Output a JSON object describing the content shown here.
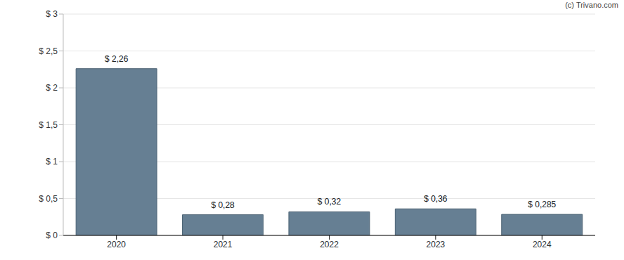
{
  "chart_data": {
    "type": "bar",
    "annotations": [
      "(c) Trivano.com"
    ],
    "categories": [
      "2020",
      "2021",
      "2022",
      "2023",
      "2024"
    ],
    "values": [
      2.26,
      0.28,
      0.32,
      0.36,
      0.285
    ],
    "value_labels": [
      "$ 2,26",
      "$ 0,28",
      "$ 0,32",
      "$ 0,36",
      "$ 0,285"
    ],
    "data_labels": true,
    "color": "#667f93",
    "ylim": [
      0,
      3
    ],
    "yticks": [
      {
        "value": 0,
        "label": "$ 0"
      },
      {
        "value": 0.5,
        "label": "$ 0,5"
      },
      {
        "value": 1,
        "label": "$ 1"
      },
      {
        "value": 1.5,
        "label": "$ 1,5"
      },
      {
        "value": 2,
        "label": "$ 2"
      },
      {
        "value": 2.5,
        "label": "$ 2,5"
      },
      {
        "value": 3,
        "label": "$ 3"
      }
    ],
    "grid": true
  }
}
